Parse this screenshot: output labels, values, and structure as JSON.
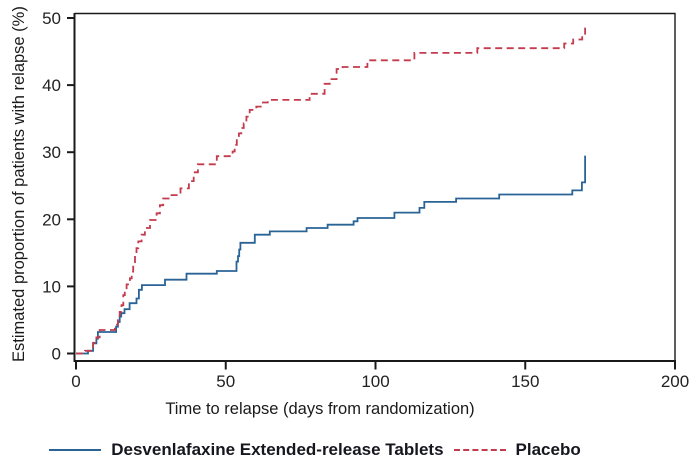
{
  "chart_data": {
    "type": "line",
    "subtype": "kaplan-meier-step",
    "title": "",
    "xlabel": "Time to relapse (days from randomization)",
    "ylabel": "Estimated proportion of patients with relapse (%)",
    "xlim": [
      0,
      200
    ],
    "ylim": [
      0,
      50
    ],
    "xticks": [
      0,
      50,
      100,
      150,
      200
    ],
    "yticks": [
      0,
      10,
      20,
      30,
      40,
      50
    ],
    "grid": false,
    "frame": true,
    "axis_color": "#1a1a1a",
    "tick_label_color": "#222222",
    "legend_position": "bottom",
    "series": [
      {
        "name": "Desvenlafaxine Extended-release Tablets",
        "color": "#2a6496",
        "style": "solid",
        "points": [
          [
            0,
            0
          ],
          [
            4,
            0.4
          ],
          [
            5.7,
            1.5
          ],
          [
            6.8,
            2.2
          ],
          [
            7.3,
            3.2
          ],
          [
            13.4,
            4.0
          ],
          [
            14,
            4.7
          ],
          [
            14.6,
            5.5
          ],
          [
            15.1,
            6.0
          ],
          [
            16.2,
            6.6
          ],
          [
            17.9,
            7.5
          ],
          [
            20.2,
            8.2
          ],
          [
            21,
            9.5
          ],
          [
            22,
            10.2
          ],
          [
            29.7,
            11.0
          ],
          [
            36.9,
            11.9
          ],
          [
            47,
            12.3
          ],
          [
            53.6,
            13.7
          ],
          [
            54.1,
            14.5
          ],
          [
            54.5,
            15.5
          ],
          [
            54.9,
            16.5
          ],
          [
            59.7,
            17.7
          ],
          [
            64.7,
            18.2
          ],
          [
            77,
            18.7
          ],
          [
            84,
            19.2
          ],
          [
            92.7,
            19.7
          ],
          [
            94,
            20.2
          ],
          [
            106.3,
            21.0
          ],
          [
            114.7,
            21.7
          ],
          [
            116.3,
            22.6
          ],
          [
            126.9,
            23.1
          ],
          [
            141.3,
            23.7
          ],
          [
            165.7,
            24.3
          ],
          [
            168.9,
            25.5
          ],
          [
            170,
            29.5
          ]
        ]
      },
      {
        "name": "Placebo",
        "color": "#c43b4e",
        "style": "dashed",
        "points": [
          [
            0,
            0
          ],
          [
            3,
            0.4
          ],
          [
            5.1,
            0.9
          ],
          [
            5.7,
            1.6
          ],
          [
            6.8,
            2.4
          ],
          [
            7.9,
            3.5
          ],
          [
            13,
            4.3
          ],
          [
            14,
            5.2
          ],
          [
            14.6,
            6.2
          ],
          [
            15.2,
            7.2
          ],
          [
            15.8,
            8.7
          ],
          [
            16.3,
            9.5
          ],
          [
            16.9,
            10.3
          ],
          [
            18,
            11.2
          ],
          [
            18.6,
            12.2
          ],
          [
            19.1,
            13.2
          ],
          [
            19.7,
            14.4
          ],
          [
            20.2,
            15.7
          ],
          [
            20.8,
            16.7
          ],
          [
            21.9,
            17.7
          ],
          [
            23,
            18.7
          ],
          [
            24.7,
            19.9
          ],
          [
            26.9,
            20.9
          ],
          [
            28,
            22.1
          ],
          [
            29.1,
            23.1
          ],
          [
            31.6,
            23.6
          ],
          [
            34.9,
            24.6
          ],
          [
            37.7,
            25.7
          ],
          [
            39.3,
            27.0
          ],
          [
            40.7,
            28.2
          ],
          [
            47,
            29.4
          ],
          [
            52.3,
            30.1
          ],
          [
            53,
            31.1
          ],
          [
            53.7,
            31.8
          ],
          [
            54.4,
            32.8
          ],
          [
            55.2,
            33.6
          ],
          [
            56,
            34.3
          ],
          [
            56.9,
            35.3
          ],
          [
            58,
            36.3
          ],
          [
            60.2,
            36.8
          ],
          [
            62.4,
            37.4
          ],
          [
            64,
            37.8
          ],
          [
            78,
            38.7
          ],
          [
            83,
            40.2
          ],
          [
            84.7,
            40.9
          ],
          [
            87,
            42.4
          ],
          [
            89,
            42.7
          ],
          [
            97.3,
            43.7
          ],
          [
            113,
            44.8
          ],
          [
            134,
            45.5
          ],
          [
            163,
            46.2
          ],
          [
            166,
            46.8
          ],
          [
            169,
            47.3
          ],
          [
            170,
            49.2
          ]
        ]
      }
    ]
  }
}
